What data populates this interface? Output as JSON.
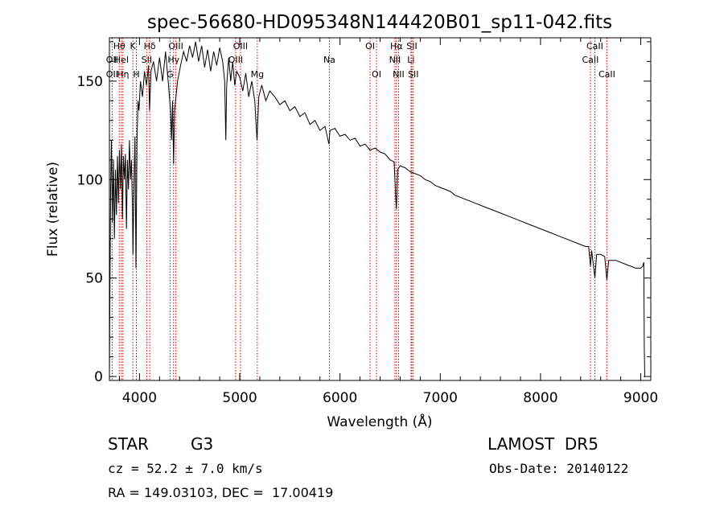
{
  "chart_data": {
    "type": "line",
    "title": "spec-56680-HD095348N144420B01_sp11-042.fits",
    "xlabel": "Wavelength (Å)",
    "ylabel": "Flux (relative)",
    "xlim": [
      3700,
      9100
    ],
    "ylim": [
      -2,
      172
    ],
    "xticks": [
      4000,
      5000,
      6000,
      7000,
      8000,
      9000
    ],
    "yticks": [
      0,
      50,
      100,
      150
    ],
    "grid": false,
    "series": [
      {
        "points": [
          [
            3700,
            0
          ],
          [
            3705,
            42
          ],
          [
            3712,
            95
          ],
          [
            3720,
            120
          ],
          [
            3730,
            78
          ],
          [
            3740,
            110
          ],
          [
            3750,
            70
          ],
          [
            3760,
            105
          ],
          [
            3770,
            82
          ],
          [
            3780,
            112
          ],
          [
            3790,
            88
          ],
          [
            3800,
            115
          ],
          [
            3810,
            95
          ],
          [
            3820,
            118
          ],
          [
            3830,
            80
          ],
          [
            3840,
            112
          ],
          [
            3850,
            100
          ],
          [
            3860,
            113
          ],
          [
            3870,
            75
          ],
          [
            3880,
            110
          ],
          [
            3890,
            95
          ],
          [
            3900,
            120
          ],
          [
            3910,
            100
          ],
          [
            3920,
            110
          ],
          [
            3930,
            85
          ],
          [
            3935,
            62
          ],
          [
            3945,
            95
          ],
          [
            3955,
            122
          ],
          [
            3965,
            55
          ],
          [
            3975,
            120
          ],
          [
            3985,
            140
          ],
          [
            3995,
            135
          ],
          [
            4010,
            150
          ],
          [
            4030,
            142
          ],
          [
            4050,
            155
          ],
          [
            4070,
            148
          ],
          [
            4090,
            158
          ],
          [
            4100,
            135
          ],
          [
            4115,
            155
          ],
          [
            4140,
            160
          ],
          [
            4170,
            150
          ],
          [
            4200,
            162
          ],
          [
            4230,
            150
          ],
          [
            4260,
            165
          ],
          [
            4290,
            148
          ],
          [
            4310,
            135
          ],
          [
            4320,
            120
          ],
          [
            4330,
            140
          ],
          [
            4340,
            108
          ],
          [
            4350,
            135
          ],
          [
            4380,
            150
          ],
          [
            4410,
            158
          ],
          [
            4440,
            165
          ],
          [
            4470,
            160
          ],
          [
            4500,
            168
          ],
          [
            4530,
            162
          ],
          [
            4560,
            170
          ],
          [
            4590,
            160
          ],
          [
            4620,
            168
          ],
          [
            4650,
            157
          ],
          [
            4680,
            166
          ],
          [
            4710,
            155
          ],
          [
            4740,
            165
          ],
          [
            4770,
            158
          ],
          [
            4800,
            167
          ],
          [
            4830,
            160
          ],
          [
            4850,
            150
          ],
          [
            4861,
            120
          ],
          [
            4870,
            148
          ],
          [
            4890,
            162
          ],
          [
            4910,
            150
          ],
          [
            4930,
            160
          ],
          [
            4950,
            148
          ],
          [
            4970,
            155
          ],
          [
            5000,
            152
          ],
          [
            5030,
            145
          ],
          [
            5060,
            154
          ],
          [
            5090,
            142
          ],
          [
            5120,
            150
          ],
          [
            5150,
            140
          ],
          [
            5172,
            120
          ],
          [
            5190,
            142
          ],
          [
            5220,
            148
          ],
          [
            5260,
            140
          ],
          [
            5300,
            145
          ],
          [
            5350,
            142
          ],
          [
            5400,
            138
          ],
          [
            5450,
            140
          ],
          [
            5500,
            135
          ],
          [
            5550,
            137
          ],
          [
            5600,
            132
          ],
          [
            5650,
            134
          ],
          [
            5700,
            128
          ],
          [
            5750,
            130
          ],
          [
            5800,
            125
          ],
          [
            5850,
            127
          ],
          [
            5890,
            118
          ],
          [
            5900,
            125
          ],
          [
            5950,
            126
          ],
          [
            6000,
            122
          ],
          [
            6050,
            123
          ],
          [
            6100,
            120
          ],
          [
            6150,
            121
          ],
          [
            6200,
            117
          ],
          [
            6250,
            118
          ],
          [
            6300,
            115
          ],
          [
            6350,
            116
          ],
          [
            6400,
            114
          ],
          [
            6450,
            113
          ],
          [
            6500,
            110
          ],
          [
            6540,
            109
          ],
          [
            6555,
            92
          ],
          [
            6563,
            85
          ],
          [
            6575,
            105
          ],
          [
            6600,
            107
          ],
          [
            6650,
            106
          ],
          [
            6700,
            104
          ],
          [
            6750,
            103
          ],
          [
            6800,
            102
          ],
          [
            6850,
            100
          ],
          [
            6900,
            99
          ],
          [
            6950,
            97
          ],
          [
            7000,
            96
          ],
          [
            7050,
            95
          ],
          [
            7100,
            94
          ],
          [
            7150,
            92
          ],
          [
            7200,
            91
          ],
          [
            7250,
            90
          ],
          [
            7300,
            89
          ],
          [
            7350,
            88
          ],
          [
            7400,
            87
          ],
          [
            7450,
            86
          ],
          [
            7500,
            85
          ],
          [
            7550,
            84
          ],
          [
            7600,
            83
          ],
          [
            7650,
            82
          ],
          [
            7700,
            81
          ],
          [
            7750,
            80
          ],
          [
            7800,
            79
          ],
          [
            7850,
            78
          ],
          [
            7900,
            77
          ],
          [
            7950,
            76
          ],
          [
            8000,
            75
          ],
          [
            8050,
            74
          ],
          [
            8100,
            73
          ],
          [
            8150,
            72
          ],
          [
            8200,
            71
          ],
          [
            8250,
            70
          ],
          [
            8300,
            69
          ],
          [
            8350,
            68
          ],
          [
            8400,
            67
          ],
          [
            8450,
            66
          ],
          [
            8480,
            66
          ],
          [
            8498,
            56
          ],
          [
            8510,
            64
          ],
          [
            8542,
            50
          ],
          [
            8560,
            62
          ],
          [
            8600,
            62
          ],
          [
            8640,
            61
          ],
          [
            8662,
            49
          ],
          [
            8680,
            59
          ],
          [
            8750,
            59
          ],
          [
            8800,
            58
          ],
          [
            8850,
            57
          ],
          [
            8900,
            56
          ],
          [
            8950,
            55
          ],
          [
            9000,
            55
          ],
          [
            9020,
            56
          ],
          [
            9030,
            58
          ],
          [
            9035,
            15
          ],
          [
            9040,
            0
          ]
        ]
      }
    ],
    "line_markers": [
      {
        "label": "Hθ",
        "x": 3798,
        "row": 1
      },
      {
        "label": "OII",
        "x": 3727,
        "row": 2
      },
      {
        "label": "OII",
        "x": 3727,
        "row": 3
      },
      {
        "label": "HeI",
        "x": 3820,
        "row": 2
      },
      {
        "label": "Hη",
        "x": 3835,
        "row": 3
      },
      {
        "label": "K",
        "x": 3934,
        "row": 1
      },
      {
        "label": "H",
        "x": 3969,
        "row": 3
      },
      {
        "label": "SII",
        "x": 4072,
        "row": 2
      },
      {
        "label": "Hδ",
        "x": 4102,
        "row": 1
      },
      {
        "label": "OIII",
        "x": 4363,
        "row": 1
      },
      {
        "label": "Hγ",
        "x": 4340,
        "row": 2
      },
      {
        "label": "G",
        "x": 4305,
        "row": 3
      },
      {
        "label": "OIII",
        "x": 5007,
        "row": 1
      },
      {
        "label": "OIII",
        "x": 4959,
        "row": 2
      },
      {
        "label": "Mg",
        "x": 5175,
        "row": 3
      },
      {
        "label": "Na",
        "x": 5894,
        "row": 2
      },
      {
        "label": "OI",
        "x": 6300,
        "row": 1
      },
      {
        "label": "OI",
        "x": 6364,
        "row": 3
      },
      {
        "label": "Hα",
        "x": 6563,
        "row": 1
      },
      {
        "label": "NII",
        "x": 6548,
        "row": 2
      },
      {
        "label": "NII",
        "x": 6584,
        "row": 3
      },
      {
        "label": "SII",
        "x": 6717,
        "row": 1
      },
      {
        "label": "Li",
        "x": 6708,
        "row": 2
      },
      {
        "label": "SII",
        "x": 6731,
        "row": 3
      },
      {
        "label": "CaII",
        "x": 8542,
        "row": 1
      },
      {
        "label": "CaII",
        "x": 8498,
        "row": 2
      },
      {
        "label": "CaII",
        "x": 8662,
        "row": 3
      }
    ]
  },
  "info": {
    "object_class": "STAR",
    "subclass": "G3",
    "survey": "LAMOST  DR5",
    "cz": "cz = 52.2 ± 7.0 km/s",
    "obs_date": "Obs-Date: 20140122",
    "coords": "RA = 149.03103, DEC =  17.00419"
  },
  "colors": {
    "spectrum": "#000000",
    "marker_line": "#cc0000",
    "axes": "#000000",
    "background": "#ffffff"
  }
}
